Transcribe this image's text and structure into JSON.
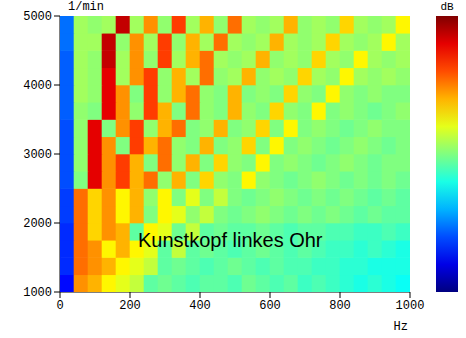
{
  "chart_data": {
    "type": "heatmap",
    "xlabel": "Hz",
    "ylabel": "1/min",
    "xlim": [
      0,
      1000
    ],
    "ylim": [
      1000,
      5000
    ],
    "xticks": [
      0,
      200,
      400,
      600,
      800,
      1000
    ],
    "yticks": [
      1000,
      2000,
      3000,
      4000,
      5000
    ],
    "grid": false,
    "x_bins": [
      0,
      40,
      80,
      120,
      160,
      200,
      240,
      280,
      320,
      360,
      400,
      440,
      480,
      520,
      560,
      600,
      640,
      680,
      720,
      760,
      800,
      840,
      880,
      920,
      960,
      1000
    ],
    "y_bins": [
      1000,
      1250,
      1500,
      1750,
      2000,
      2250,
      2500,
      2750,
      3000,
      3250,
      3500,
      3750,
      4000,
      4250,
      4500,
      4750,
      5000
    ],
    "cells": [
      [
        28,
        64,
        62,
        58,
        56,
        54,
        48,
        49,
        48,
        47,
        48,
        48,
        47,
        49,
        48,
        47,
        48,
        46,
        47,
        46,
        45,
        44,
        45,
        44,
        43
      ],
      [
        30,
        66,
        64,
        62,
        58,
        56,
        54,
        48,
        49,
        48,
        47,
        48,
        49,
        48,
        47,
        48,
        47,
        47,
        46,
        46,
        45,
        45,
        44,
        44,
        44
      ],
      [
        30,
        66,
        64,
        58,
        62,
        58,
        56,
        48,
        54,
        48,
        49,
        48,
        47,
        48,
        49,
        48,
        47,
        48,
        47,
        46,
        46,
        45,
        46,
        45,
        44
      ],
      [
        30,
        66,
        60,
        64,
        62,
        48,
        58,
        56,
        49,
        54,
        48,
        49,
        48,
        48,
        49,
        48,
        47,
        48,
        48,
        47,
        47,
        46,
        46,
        47,
        46
      ],
      [
        31,
        66,
        60,
        64,
        58,
        62,
        50,
        58,
        56,
        51,
        54,
        50,
        49,
        50,
        51,
        50,
        49,
        50,
        49,
        50,
        49,
        48,
        49,
        48,
        48
      ],
      [
        31,
        66,
        60,
        64,
        58,
        62,
        51,
        58,
        50,
        56,
        50,
        54,
        50,
        49,
        50,
        51,
        50,
        49,
        50,
        49,
        50,
        49,
        48,
        49,
        48
      ],
      [
        32,
        50,
        74,
        64,
        69,
        62,
        66,
        51,
        62,
        50,
        60,
        51,
        50,
        58,
        51,
        50,
        49,
        50,
        51,
        50,
        49,
        50,
        49,
        50,
        49
      ],
      [
        32,
        51,
        74,
        64,
        69,
        62,
        50,
        66,
        51,
        62,
        50,
        60,
        51,
        50,
        58,
        50,
        51,
        50,
        49,
        50,
        51,
        50,
        49,
        50,
        50
      ],
      [
        32,
        51,
        74,
        64,
        50,
        69,
        62,
        66,
        51,
        50,
        62,
        50,
        51,
        60,
        50,
        58,
        50,
        51,
        50,
        49,
        50,
        51,
        50,
        49,
        50
      ],
      [
        32,
        51,
        74,
        50,
        64,
        69,
        51,
        62,
        66,
        50,
        51,
        62,
        50,
        51,
        60,
        50,
        58,
        50,
        51,
        50,
        49,
        50,
        51,
        50,
        50
      ],
      [
        33,
        51,
        50,
        74,
        64,
        51,
        69,
        62,
        50,
        66,
        51,
        50,
        62,
        51,
        50,
        60,
        51,
        50,
        58,
        50,
        51,
        50,
        49,
        50,
        51
      ],
      [
        33,
        52,
        51,
        74,
        64,
        50,
        69,
        51,
        62,
        66,
        51,
        50,
        62,
        50,
        51,
        50,
        60,
        51,
        50,
        58,
        51,
        50,
        51,
        50,
        50
      ],
      [
        33,
        52,
        51,
        74,
        52,
        64,
        69,
        51,
        62,
        52,
        66,
        51,
        52,
        62,
        51,
        52,
        51,
        60,
        52,
        51,
        58,
        52,
        51,
        52,
        51
      ],
      [
        33,
        52,
        51,
        76,
        52,
        64,
        51,
        69,
        52,
        62,
        66,
        52,
        51,
        52,
        62,
        51,
        52,
        51,
        60,
        52,
        51,
        58,
        52,
        51,
        52
      ],
      [
        34,
        52,
        52,
        76,
        51,
        64,
        52,
        69,
        51,
        62,
        52,
        66,
        52,
        51,
        52,
        62,
        52,
        51,
        52,
        60,
        52,
        51,
        52,
        58,
        52
      ],
      [
        34,
        52,
        51,
        52,
        76,
        52,
        64,
        51,
        69,
        52,
        62,
        51,
        66,
        52,
        51,
        52,
        62,
        51,
        52,
        51,
        60,
        52,
        51,
        52,
        58
      ]
    ],
    "colorbar": {
      "label": "dB",
      "range": [
        20,
        80
      ]
    },
    "annotations": [
      {
        "text": "Kunstkopf linkes Ohr"
      }
    ]
  }
}
